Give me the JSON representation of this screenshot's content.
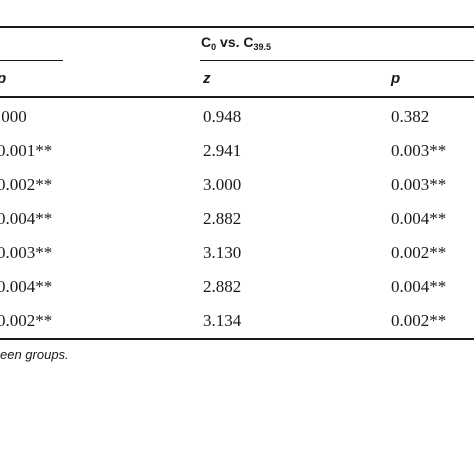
{
  "table": {
    "group_header": {
      "base": "C",
      "sub1": "0",
      "vs": " vs. ",
      "base2": "C",
      "sub2": "39.5"
    },
    "columns": {
      "p_left": "p",
      "z": "z",
      "p_right": "p"
    },
    "rows": [
      {
        "p_left": ".000",
        "z": "0.948",
        "p_right": "0.382"
      },
      {
        "p_left": "0.001**",
        "z": "2.941",
        "p_right": "0.003**"
      },
      {
        "p_left": "0.002**",
        "z": "3.000",
        "p_right": "0.003**"
      },
      {
        "p_left": "0.004**",
        "z": "2.882",
        "p_right": "0.004**"
      },
      {
        "p_left": "0.003**",
        "z": "3.130",
        "p_right": "0.002**"
      },
      {
        "p_left": "0.004**",
        "z": "2.882",
        "p_right": "0.004**"
      },
      {
        "p_left": "0.002**",
        "z": "3.134",
        "p_right": "0.002**"
      }
    ],
    "footnote": "een groups."
  }
}
